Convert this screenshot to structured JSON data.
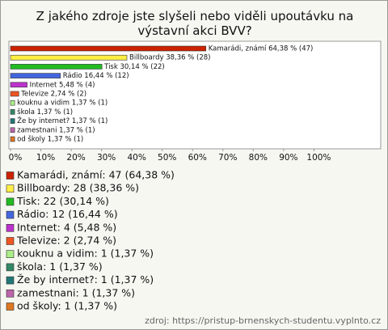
{
  "chart_data": {
    "type": "bar",
    "title": "Z jakého zdroje jste slyšeli nebo viděli upoutávku na výstavní akci BVV?",
    "values": [
      64.38,
      38.36,
      30.14,
      16.44,
      5.48,
      2.74,
      1.37,
      1.37,
      1.37,
      1.37,
      1.37
    ],
    "value_labels": [
      "Kamarádi, známí 64,38 % (47)",
      "Billboardy 38,36 % (28)",
      "Tisk 30,14 % (22)",
      "Rádio 16,44 % (12)",
      "Internet 5,48 % (4)",
      "Televize 2,74 % (2)",
      "kouknu a vidim 1,37 % (1)",
      "škola 1,37 % (1)",
      "Že by internet? 1,37 % (1)",
      "zamestnani 1,37 % (1)",
      "od školy 1,37 % (1)"
    ],
    "legend": [
      "Kamarádi, známí: 47 (64,38 %)",
      "Billboardy: 28 (38,36 %)",
      "Tisk: 22 (30,14 %)",
      "Rádio: 12 (16,44 %)",
      "Internet: 4 (5,48 %)",
      "Televize: 2 (2,74 %)",
      "kouknu a vidim: 1 (1,37 %)",
      "škola: 1 (1,37 %)",
      "Že by internet?: 1 (1,37 %)",
      "zamestnani: 1 (1,37 %)",
      "od školy: 1 (1,37 %)"
    ],
    "colors": [
      "#cc2200",
      "#ffee44",
      "#22bb22",
      "#4466dd",
      "#bb33cc",
      "#ee5522",
      "#aaee88",
      "#338866",
      "#227777",
      "#bb66aa",
      "#dd7722"
    ],
    "xlim": [
      0,
      122
    ],
    "xticks": [
      {
        "value": 0,
        "label": "0%"
      },
      {
        "value": 10,
        "label": "10%"
      },
      {
        "value": 20,
        "label": "20%"
      },
      {
        "value": 30,
        "label": "30%"
      },
      {
        "value": 40,
        "label": "40%"
      },
      {
        "value": 50,
        "label": "50%"
      },
      {
        "value": 60,
        "label": "60%"
      },
      {
        "value": 70,
        "label": "70%"
      },
      {
        "value": 80,
        "label": "80%"
      },
      {
        "value": 90,
        "label": "90%"
      },
      {
        "value": 100,
        "label": "100%"
      }
    ],
    "source": "zdroj: https://pristup-brnenskych-studentu.vyplnto.cz"
  }
}
